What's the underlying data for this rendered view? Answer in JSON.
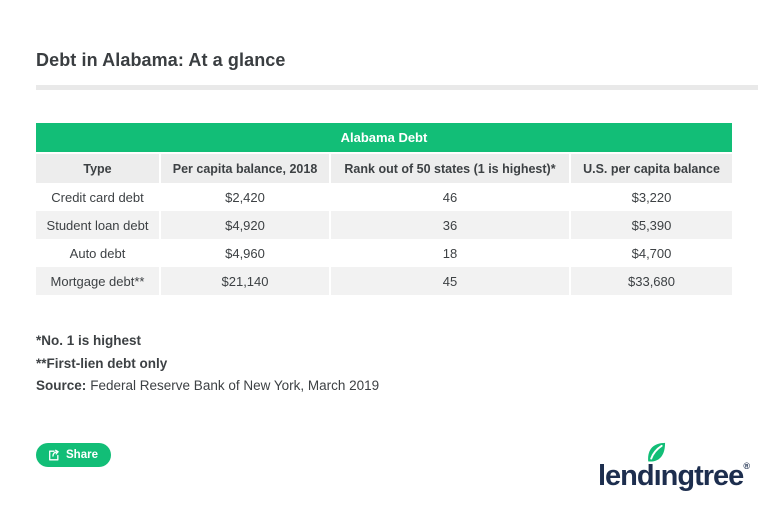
{
  "page": {
    "title": "Debt in Alabama: At a glance"
  },
  "chart_data": {
    "type": "table",
    "title": "Alabama Debt",
    "columns": [
      "Type",
      "Per capita balance, 2018",
      "Rank out of 50 states (1 is highest)*",
      "U.S. per capita balance"
    ],
    "rows": [
      [
        "Credit card debt",
        "$2,420",
        "46",
        "$3,220"
      ],
      [
        "Student loan debt",
        "$4,920",
        "36",
        "$5,390"
      ],
      [
        "Auto debt",
        "$4,960",
        "18",
        "$4,700"
      ],
      [
        "Mortgage debt**",
        "$21,140",
        "45",
        "$33,680"
      ]
    ]
  },
  "footnotes": {
    "note1": "*No. 1 is highest",
    "note2": "**First-lien debt only",
    "source_label": "Source:",
    "source_text": "Federal Reserve Bank of New York, March 2019"
  },
  "actions": {
    "share_label": "Share"
  },
  "branding": {
    "logo_text": "lendıngtree",
    "registered": "®"
  },
  "colors": {
    "brand_green": "#12be77",
    "logo_navy": "#1d2e4e",
    "header_gray": "#ededed",
    "row_gray": "#f2f2f2",
    "divider_gray": "#e9e9e9",
    "text_dark": "#3d4144"
  }
}
